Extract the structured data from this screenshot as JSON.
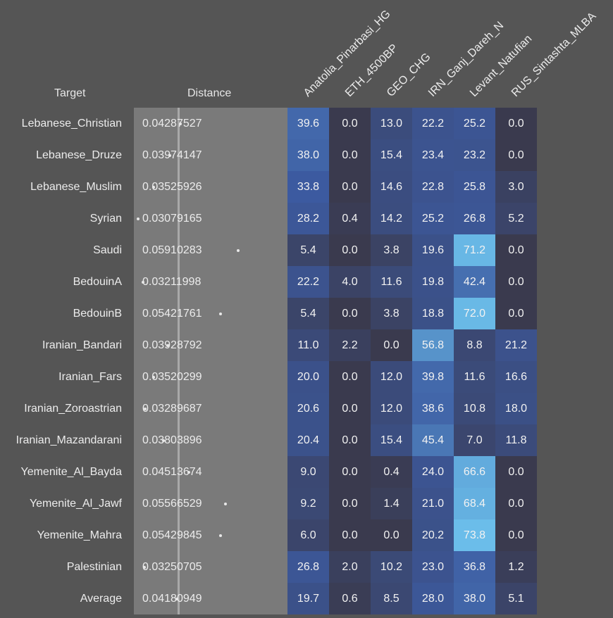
{
  "headers": {
    "target": "Target",
    "distance": "Distance"
  },
  "chart_data": {
    "type": "heatmap",
    "columns": [
      "Anatolia_Pinarbasi_HG",
      "ETH_4500BP",
      "GEO_CHG",
      "IRN_Ganj_Dareh_N",
      "Levant_Natufian",
      "RUS_Sintashta_MLBA"
    ],
    "rows": [
      {
        "target": "Lebanese_Christian",
        "distance": "0.04287527",
        "values": [
          39.6,
          0.0,
          13.0,
          22.2,
          25.2,
          0.0
        ]
      },
      {
        "target": "Lebanese_Druze",
        "distance": "0.03974147",
        "values": [
          38.0,
          0.0,
          15.4,
          23.4,
          23.2,
          0.0
        ]
      },
      {
        "target": "Lebanese_Muslim",
        "distance": "0.03525926",
        "values": [
          33.8,
          0.0,
          14.6,
          22.8,
          25.8,
          3.0
        ]
      },
      {
        "target": "Syrian",
        "distance": "0.03079165",
        "values": [
          28.2,
          0.4,
          14.2,
          25.2,
          26.8,
          5.2
        ]
      },
      {
        "target": "Saudi",
        "distance": "0.05910283",
        "values": [
          5.4,
          0.0,
          3.8,
          19.6,
          71.2,
          0.0
        ]
      },
      {
        "target": "BedouinA",
        "distance": "0.03211998",
        "values": [
          22.2,
          4.0,
          11.6,
          19.8,
          42.4,
          0.0
        ]
      },
      {
        "target": "BedouinB",
        "distance": "0.05421761",
        "values": [
          5.4,
          0.0,
          3.8,
          18.8,
          72.0,
          0.0
        ]
      },
      {
        "target": "Iranian_Bandari",
        "distance": "0.03928792",
        "values": [
          11.0,
          2.2,
          0.0,
          56.8,
          8.8,
          21.2
        ]
      },
      {
        "target": "Iranian_Fars",
        "distance": "0.03520299",
        "values": [
          20.0,
          0.0,
          12.0,
          39.8,
          11.6,
          16.6
        ]
      },
      {
        "target": "Iranian_Zoroastrian",
        "distance": "0.03289687",
        "values": [
          20.6,
          0.0,
          12.0,
          38.6,
          10.8,
          18.0
        ]
      },
      {
        "target": "Iranian_Mazandarani",
        "distance": "0.03803896",
        "values": [
          20.4,
          0.0,
          15.4,
          45.4,
          7.0,
          11.8
        ]
      },
      {
        "target": "Yemenite_Al_Bayda",
        "distance": "0.04513674",
        "values": [
          9.0,
          0.0,
          0.4,
          24.0,
          66.6,
          0.0
        ]
      },
      {
        "target": "Yemenite_Al_Jawf",
        "distance": "0.05566529",
        "values": [
          9.2,
          0.0,
          1.4,
          21.0,
          68.4,
          0.0
        ]
      },
      {
        "target": "Yemenite_Mahra",
        "distance": "0.05429845",
        "values": [
          6.0,
          0.0,
          0.0,
          20.2,
          73.8,
          0.0
        ]
      },
      {
        "target": "Palestinian",
        "distance": "0.03250705",
        "values": [
          26.8,
          2.0,
          10.2,
          23.0,
          36.8,
          1.2
        ]
      },
      {
        "target": "Average",
        "distance": "0.04180949",
        "values": [
          19.7,
          0.6,
          8.5,
          28.0,
          38.0,
          5.1
        ]
      }
    ],
    "distance_reference": 0.04180949,
    "distance_range": [
      0.03,
      0.06
    ],
    "value_range": [
      0,
      75
    ],
    "colors": {
      "low": "#3a3a4e",
      "mid": "#3c5aa0",
      "high": "#6cc0ec",
      "panel": "#7a7a7a",
      "background": "#555555"
    }
  }
}
